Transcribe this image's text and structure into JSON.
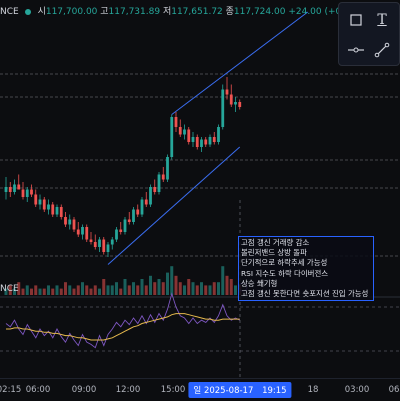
{
  "header": {
    "symbol_tail": "NCE",
    "open_label": "시",
    "open_value": "117,700.00",
    "high_label": "고",
    "high_value": "117,731.89",
    "low_label": "저",
    "low_value": "117,651.72",
    "close_label": "종",
    "close_value": "117,724.00",
    "change_value": "+24.00 (+0."
  },
  "source_label": "NCE",
  "toolbar": {
    "icons": [
      "rectangle-tool-icon",
      "text-tool-icon",
      "line-tool-icon",
      "trendline-tool-icon"
    ],
    "text_tool_glyph": "T"
  },
  "annotation": {
    "lines": [
      "고점 갱신 거래량 감소",
      "볼린저밴드 상방 돌파",
      "단기적으로 하락추세 가능성",
      "RSI 지수도 하락 다이버전스",
      "상승 쐐기형",
      "고점 갱신 못한다면 숏포지션 진입 가능성"
    ]
  },
  "xaxis": {
    "ticks": [
      "02:15",
      "06:00",
      "09:00",
      "12:00",
      "15:00",
      "18",
      "03:00",
      "06"
    ],
    "crosshair_prefix": "일",
    "crosshair_date": "2025-08-17",
    "crosshair_time": "19:15"
  },
  "colors": {
    "up": "#26a69a",
    "down": "#ef5350",
    "wedge": "#3a6df0",
    "rsi": "#7e57c2",
    "rsi_ma": "#e6b94e"
  },
  "chart_data": {
    "type": "candlestick",
    "timeframe": "15m",
    "candles": [
      [
        3.8,
        4.4,
        3.5,
        4.0
      ],
      [
        4.0,
        4.2,
        3.6,
        3.8
      ],
      [
        3.8,
        4.3,
        3.7,
        4.1
      ],
      [
        4.1,
        4.5,
        3.9,
        3.9
      ],
      [
        3.9,
        4.2,
        3.5,
        3.6
      ],
      [
        3.6,
        4.0,
        3.4,
        3.9
      ],
      [
        3.9,
        4.1,
        3.6,
        3.7
      ],
      [
        3.7,
        3.9,
        3.2,
        3.3
      ],
      [
        3.3,
        3.7,
        3.1,
        3.5
      ],
      [
        3.5,
        3.6,
        3.0,
        3.1
      ],
      [
        3.1,
        3.5,
        2.9,
        3.3
      ],
      [
        3.3,
        3.4,
        2.8,
        2.9
      ],
      [
        2.9,
        3.3,
        2.8,
        3.2
      ],
      [
        3.2,
        3.3,
        2.7,
        2.8
      ],
      [
        2.8,
        3.0,
        2.4,
        2.5
      ],
      [
        2.5,
        2.9,
        2.3,
        2.7
      ],
      [
        2.7,
        2.8,
        2.2,
        2.3
      ],
      [
        2.3,
        2.6,
        2.0,
        2.1
      ],
      [
        2.1,
        2.5,
        1.9,
        2.4
      ],
      [
        2.4,
        2.5,
        1.8,
        1.9
      ],
      [
        1.9,
        2.2,
        1.7,
        1.8
      ],
      [
        1.8,
        2.1,
        1.5,
        1.6
      ],
      [
        1.6,
        2.0,
        1.4,
        1.9
      ],
      [
        1.9,
        2.0,
        1.3,
        1.4
      ],
      [
        1.4,
        1.8,
        1.2,
        1.7
      ],
      [
        1.7,
        2.0,
        1.5,
        1.9
      ],
      [
        1.9,
        2.4,
        1.8,
        2.3
      ],
      [
        2.3,
        2.6,
        2.1,
        2.2
      ],
      [
        2.2,
        2.8,
        2.1,
        2.7
      ],
      [
        2.7,
        3.0,
        2.5,
        2.6
      ],
      [
        2.6,
        3.2,
        2.5,
        3.1
      ],
      [
        3.1,
        3.3,
        2.8,
        2.9
      ],
      [
        2.9,
        3.6,
        2.8,
        3.5
      ],
      [
        3.5,
        3.8,
        3.2,
        3.3
      ],
      [
        3.3,
        4.1,
        3.2,
        4.0
      ],
      [
        4.0,
        4.3,
        3.7,
        3.8
      ],
      [
        3.8,
        4.6,
        3.7,
        4.5
      ],
      [
        4.5,
        4.8,
        4.2,
        4.3
      ],
      [
        4.3,
        5.3,
        4.2,
        5.2
      ],
      [
        5.2,
        6.9,
        5.1,
        6.8
      ],
      [
        6.8,
        7.0,
        6.2,
        6.4
      ],
      [
        6.4,
        6.7,
        6.0,
        6.1
      ],
      [
        6.1,
        6.5,
        5.9,
        6.3
      ],
      [
        6.3,
        6.4,
        5.7,
        5.8
      ],
      [
        5.8,
        6.2,
        5.6,
        6.0
      ],
      [
        6.0,
        6.1,
        5.5,
        5.6
      ],
      [
        5.6,
        6.0,
        5.4,
        5.9
      ],
      [
        5.9,
        6.0,
        5.6,
        5.7
      ],
      [
        5.7,
        6.1,
        5.6,
        6.0
      ],
      [
        6.0,
        6.2,
        5.7,
        5.8
      ],
      [
        5.8,
        6.5,
        5.7,
        6.4
      ],
      [
        6.4,
        8.1,
        6.3,
        7.9
      ],
      [
        7.9,
        8.4,
        7.5,
        7.7
      ],
      [
        7.7,
        8.1,
        7.2,
        7.3
      ],
      [
        7.3,
        7.6,
        7.0,
        7.4
      ],
      [
        7.4,
        7.5,
        7.1,
        7.2
      ]
    ],
    "volume": [
      2,
      3,
      2,
      4,
      2,
      3,
      2,
      3,
      2,
      2,
      3,
      2,
      3,
      2,
      4,
      3,
      2,
      3,
      4,
      3,
      2,
      3,
      2,
      5,
      3,
      3,
      4,
      2,
      5,
      3,
      4,
      3,
      5,
      3,
      6,
      4,
      5,
      4,
      7,
      9,
      6,
      4,
      3,
      5,
      4,
      3,
      4,
      3,
      3,
      4,
      4,
      9,
      6,
      5,
      3,
      3
    ],
    "rsi": [
      55,
      52,
      58,
      50,
      45,
      54,
      48,
      42,
      50,
      44,
      48,
      42,
      50,
      43,
      38,
      46,
      40,
      35,
      45,
      38,
      36,
      33,
      44,
      35,
      45,
      50,
      56,
      52,
      58,
      54,
      60,
      55,
      62,
      55,
      63,
      56,
      64,
      58,
      68,
      82,
      70,
      62,
      60,
      55,
      60,
      55,
      58,
      56,
      60,
      56,
      62,
      72,
      62,
      58,
      60,
      58
    ],
    "rsi_ma": [
      50,
      50,
      51,
      51,
      50,
      50,
      49,
      48,
      48,
      47,
      47,
      46,
      46,
      45,
      44,
      44,
      43,
      42,
      42,
      41,
      40,
      40,
      40,
      40,
      41,
      42,
      44,
      46,
      48,
      50,
      52,
      53,
      55,
      56,
      57,
      58,
      59,
      60,
      61,
      63,
      64,
      64,
      64,
      63,
      62,
      61,
      60,
      59,
      59,
      58,
      58,
      59,
      59,
      59,
      59,
      59
    ],
    "wedge": {
      "upper": [
        [
          39,
          6.9
        ],
        [
          71,
          11.0
        ]
      ],
      "lower": [
        [
          24,
          0.9
        ],
        [
          55,
          5.6
        ]
      ]
    }
  }
}
